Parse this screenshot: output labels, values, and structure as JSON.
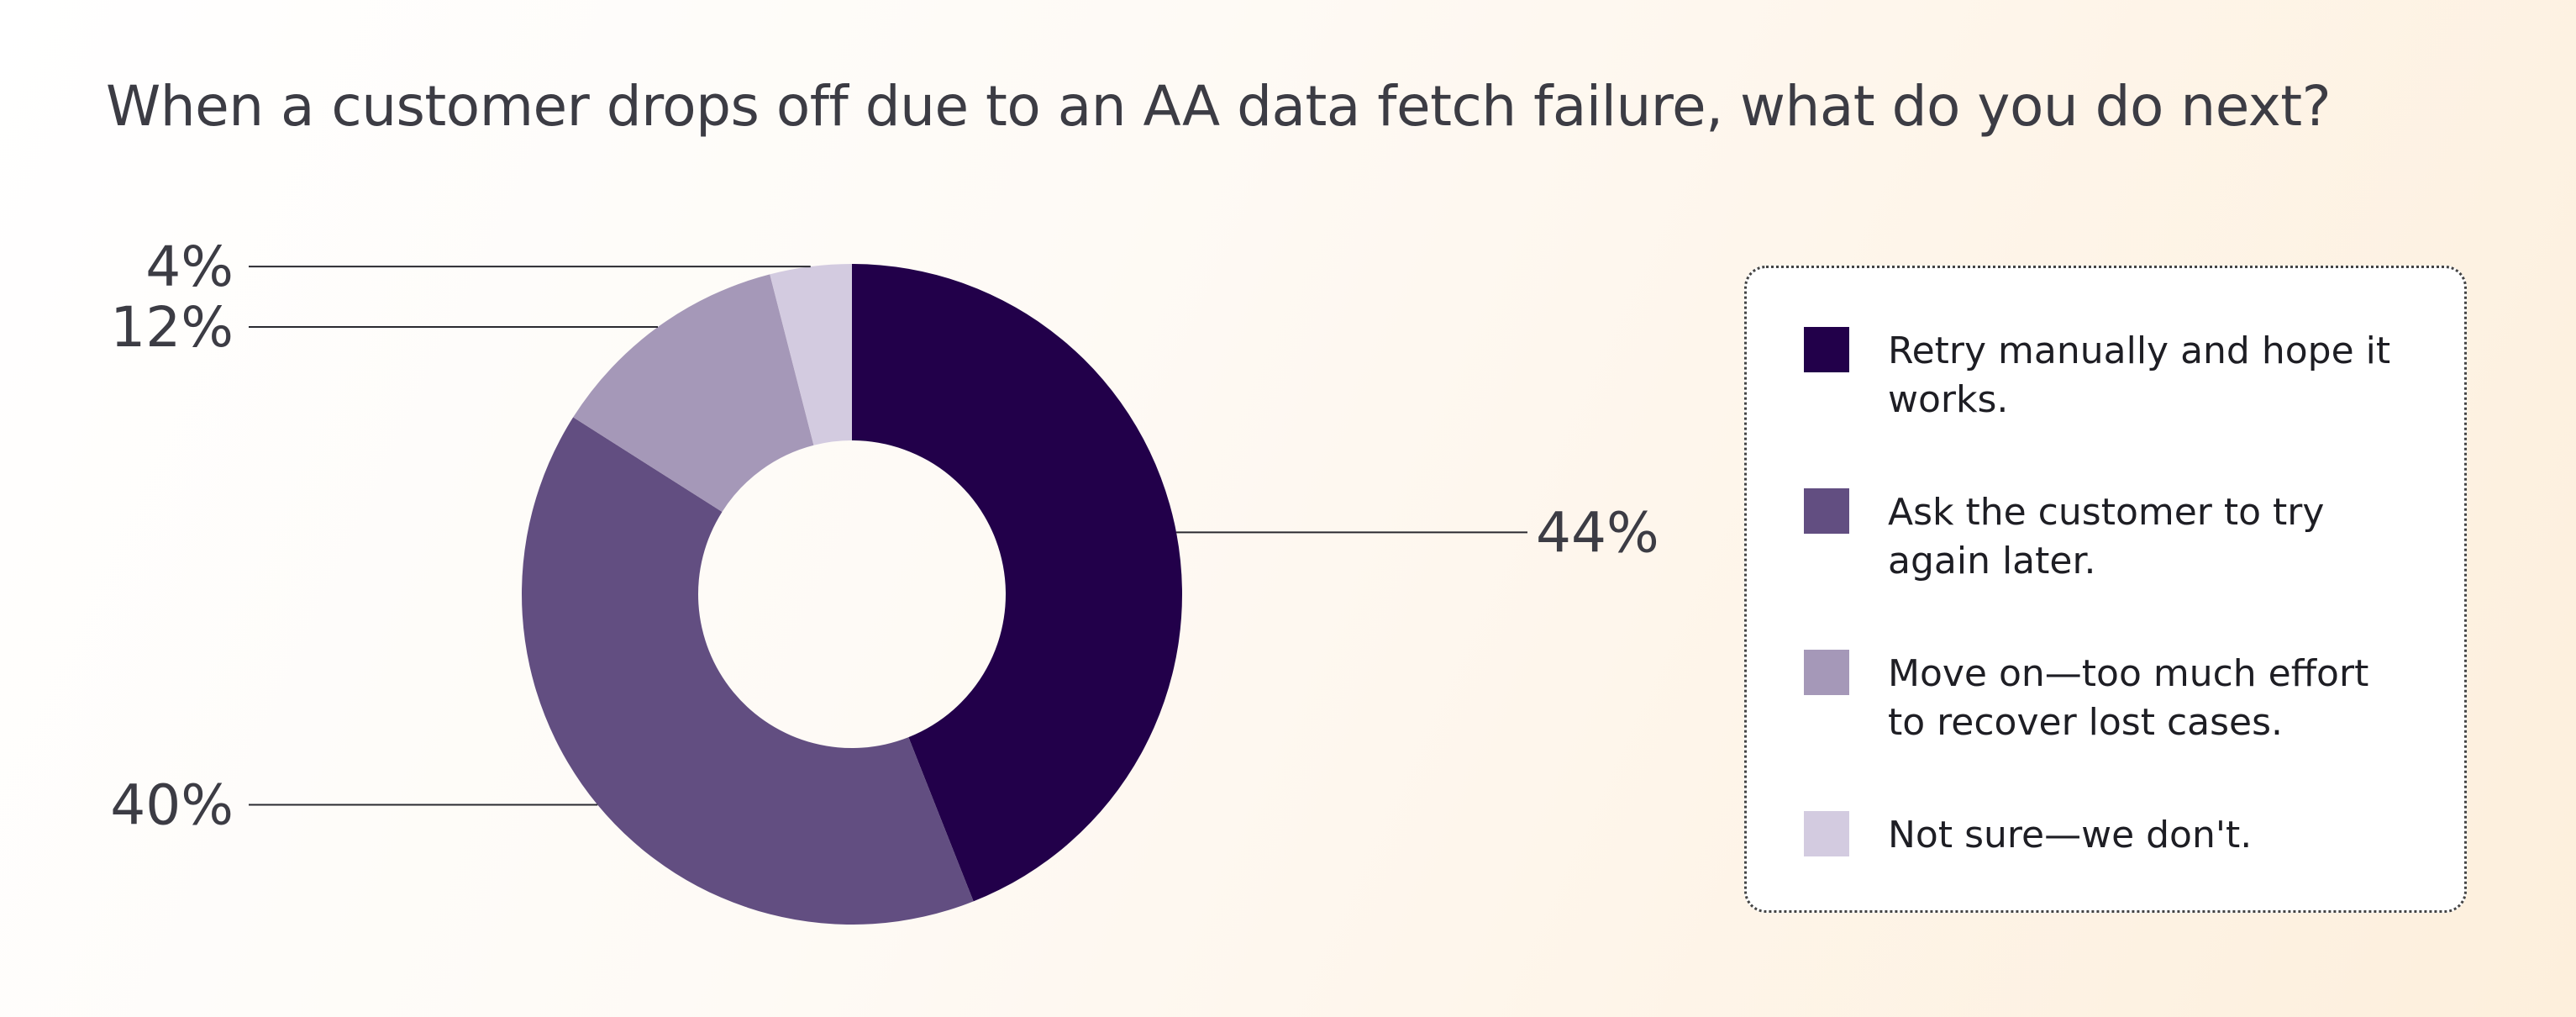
{
  "title": "When a customer drops off due to an AA data fetch failure, what do you do next?",
  "chart_data": {
    "type": "pie",
    "donut": true,
    "title": "When a customer drops off due to an AA data fetch failure, what do you do next?",
    "categories": [
      "Retry manually and hope it works.",
      "Ask the customer to try again later.",
      "Move on—too much effort to recover lost cases.",
      "Not sure—we don't."
    ],
    "values": [
      44,
      40,
      12,
      4
    ],
    "labels": [
      "44%",
      "40%",
      "12%",
      "4%"
    ],
    "colors": [
      "#22004a",
      "#624e81",
      "#a598b8",
      "#d3cbe0"
    ],
    "legend_position": "right"
  },
  "legend": {
    "items": [
      {
        "label": "Retry manually and hope it works.",
        "color": "#22004a"
      },
      {
        "label": "Ask the customer to try again later.",
        "color": "#624e81"
      },
      {
        "label": "Move on—too much effort to recover lost cases.",
        "color": "#a598b8"
      },
      {
        "label": "Not sure—we don't.",
        "color": "#d3cbe0"
      }
    ]
  }
}
